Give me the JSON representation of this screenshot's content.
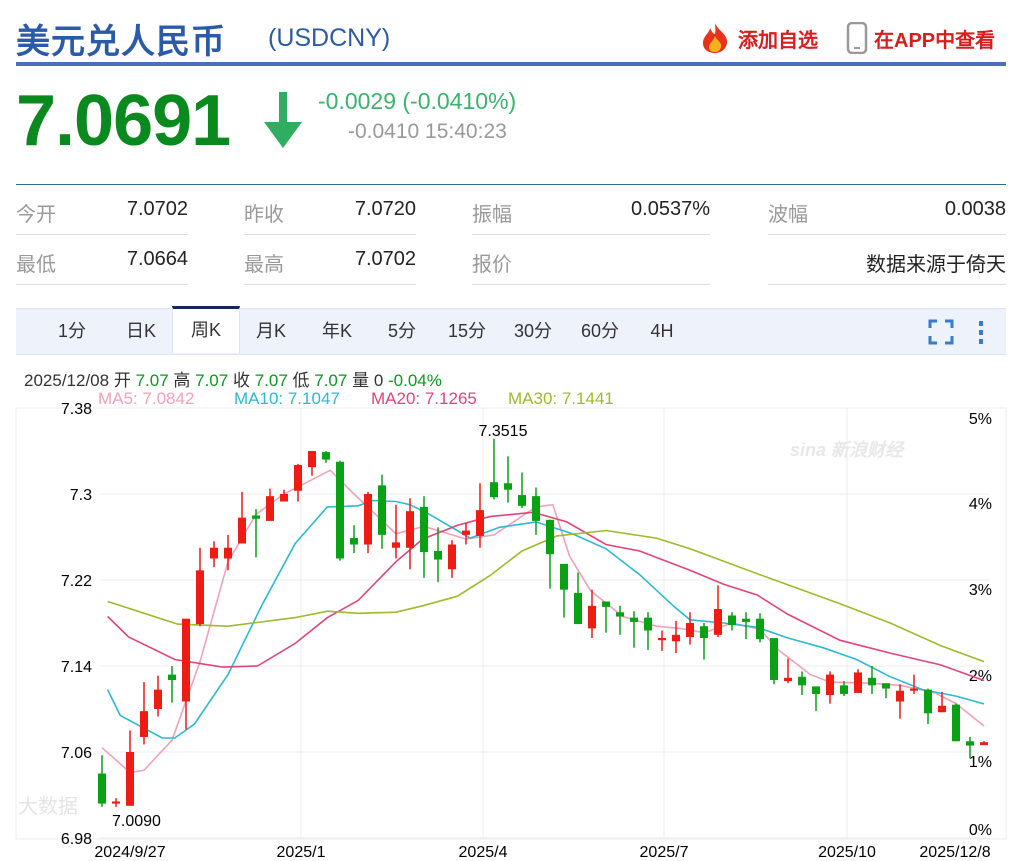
{
  "header": {
    "title": "美元兑人民币",
    "code": "(USDCNY)",
    "add_watchlist": "添加自选",
    "view_in_app": "在APP中查看"
  },
  "quote": {
    "price": "7.0691",
    "direction": "down",
    "change": "-0.0029 (-0.0410%)",
    "sub": "-0.0410 15:40:23",
    "color_down": "#0a8a1e"
  },
  "stats": [
    {
      "label": "今开",
      "value": "7.0702"
    },
    {
      "label": "昨收",
      "value": "7.0720"
    },
    {
      "label": "振幅",
      "value": "0.0537%"
    },
    {
      "label": "波幅",
      "value": "0.0038"
    },
    {
      "label": "最低",
      "value": "7.0664"
    },
    {
      "label": "最高",
      "value": "7.0702"
    },
    {
      "label": "报价",
      "value": ""
    },
    {
      "label": "",
      "value": "数据来源于倚天"
    }
  ],
  "tabs": [
    {
      "label": "1分"
    },
    {
      "label": "日K"
    },
    {
      "label": "周K",
      "active": true
    },
    {
      "label": "月K"
    },
    {
      "label": "年K"
    },
    {
      "label": "5分"
    },
    {
      "label": "15分"
    },
    {
      "label": "30分"
    },
    {
      "label": "60分"
    },
    {
      "label": "4H"
    }
  ],
  "toolbar": {
    "fullscreen_icon": "fullscreen-icon",
    "more_icon": "more-vertical-icon"
  },
  "bar_info": {
    "date": "2025/12/08",
    "open_label": "开",
    "open": "7.07",
    "high_label": "高",
    "high": "7.07",
    "close_label": "收",
    "close": "7.07",
    "low_label": "低",
    "low": "7.07",
    "vol_label": "量",
    "vol": "0",
    "pct": "-0.04%"
  },
  "ma_legend": [
    {
      "label": "MA5: 7.0842",
      "color": "#f4a0b8"
    },
    {
      "label": "MA10: 7.1047",
      "color": "#2bbad2"
    },
    {
      "label": "MA20: 7.1265",
      "color": "#e0457a"
    },
    {
      "label": "MA30: 7.1441",
      "color": "#9cba2a"
    }
  ],
  "watermarks": {
    "top": "sina 新浪财经",
    "bottom": "大数据"
  },
  "chart_data": {
    "type": "candlestick",
    "period": "weekly",
    "up_color": "#ee1c12",
    "down_color": "#09a215",
    "y_ticks": [
      "7.38",
      "7.3",
      "7.22",
      "7.14",
      "7.06",
      "6.98"
    ],
    "ylim": [
      6.98,
      7.38
    ],
    "y2_ticks": [
      "5%",
      "4%",
      "3%",
      "2%",
      "1%",
      "0%"
    ],
    "x_ticks": [
      "2024/9/27",
      "2025/1",
      "2025/4",
      "2025/7",
      "2025/10",
      "2025/12/8"
    ],
    "annotations": {
      "max": "7.3515",
      "min": "7.0090"
    },
    "ohlc": [
      [
        7.04,
        7.057,
        7.009,
        7.012
      ],
      [
        7.012,
        7.017,
        7.009,
        7.014
      ],
      [
        7.01,
        7.08,
        7.01,
        7.06
      ],
      [
        7.074,
        7.125,
        7.067,
        7.098
      ],
      [
        7.1,
        7.131,
        7.093,
        7.118
      ],
      [
        7.132,
        7.14,
        7.106,
        7.127
      ],
      [
        7.107,
        7.184,
        7.081,
        7.184
      ],
      [
        7.179,
        7.25,
        7.177,
        7.229
      ],
      [
        7.24,
        7.256,
        7.232,
        7.25
      ],
      [
        7.24,
        7.262,
        7.229,
        7.25
      ],
      [
        7.254,
        7.302,
        7.254,
        7.278
      ],
      [
        7.28,
        7.286,
        7.241,
        7.277
      ],
      [
        7.275,
        7.305,
        7.275,
        7.298
      ],
      [
        7.293,
        7.304,
        7.293,
        7.3
      ],
      [
        7.303,
        7.328,
        7.293,
        7.327
      ],
      [
        7.325,
        7.34,
        7.317,
        7.34
      ],
      [
        7.339,
        7.34,
        7.329,
        7.332
      ],
      [
        7.33,
        7.331,
        7.238,
        7.24
      ],
      [
        7.259,
        7.271,
        7.245,
        7.253
      ],
      [
        7.253,
        7.302,
        7.245,
        7.3
      ],
      [
        7.308,
        7.318,
        7.249,
        7.262
      ],
      [
        7.25,
        7.29,
        7.24,
        7.255
      ],
      [
        7.25,
        7.296,
        7.23,
        7.284
      ],
      [
        7.288,
        7.298,
        7.222,
        7.246
      ],
      [
        7.247,
        7.269,
        7.218,
        7.239
      ],
      [
        7.23,
        7.257,
        7.222,
        7.253
      ],
      [
        7.262,
        7.273,
        7.253,
        7.266
      ],
      [
        7.261,
        7.31,
        7.25,
        7.285
      ],
      [
        7.311,
        7.3515,
        7.295,
        7.297
      ],
      [
        7.31,
        7.335,
        7.292,
        7.304
      ],
      [
        7.299,
        7.32,
        7.287,
        7.289
      ],
      [
        7.298,
        7.306,
        7.262,
        7.275
      ],
      [
        7.276,
        7.276,
        7.212,
        7.244
      ],
      [
        7.235,
        7.235,
        7.185,
        7.211
      ],
      [
        7.208,
        7.227,
        7.179,
        7.179
      ],
      [
        7.175,
        7.211,
        7.166,
        7.196
      ],
      [
        7.2,
        7.2,
        7.171,
        7.195
      ],
      [
        7.19,
        7.196,
        7.169,
        7.186
      ],
      [
        7.185,
        7.191,
        7.157,
        7.181
      ],
      [
        7.185,
        7.19,
        7.155,
        7.173
      ],
      [
        7.164,
        7.173,
        7.154,
        7.166
      ],
      [
        7.163,
        7.182,
        7.152,
        7.169
      ],
      [
        7.167,
        7.19,
        7.16,
        7.18
      ],
      [
        7.177,
        7.18,
        7.146,
        7.166
      ],
      [
        7.169,
        7.215,
        7.167,
        7.193
      ],
      [
        7.187,
        7.19,
        7.173,
        7.178
      ],
      [
        7.184,
        7.19,
        7.165,
        7.181
      ],
      [
        7.184,
        7.189,
        7.162,
        7.165
      ],
      [
        7.166,
        7.166,
        7.123,
        7.127
      ],
      [
        7.126,
        7.147,
        7.124,
        7.129
      ],
      [
        7.13,
        7.135,
        7.113,
        7.122
      ],
      [
        7.121,
        7.121,
        7.098,
        7.114
      ],
      [
        7.113,
        7.135,
        7.105,
        7.132
      ],
      [
        7.122,
        7.126,
        7.112,
        7.114
      ],
      [
        7.115,
        7.137,
        7.115,
        7.134
      ],
      [
        7.129,
        7.14,
        7.114,
        7.122
      ],
      [
        7.124,
        7.124,
        7.11,
        7.119
      ],
      [
        7.107,
        7.123,
        7.091,
        7.117
      ],
      [
        7.117,
        7.132,
        7.114,
        7.119
      ],
      [
        7.118,
        7.119,
        7.086,
        7.096
      ],
      [
        7.097,
        7.116,
        7.097,
        7.103
      ],
      [
        7.104,
        7.105,
        7.07,
        7.07
      ],
      [
        7.07,
        7.074,
        7.054,
        7.066
      ],
      [
        7.0664,
        7.0702,
        7.0664,
        7.0691
      ]
    ],
    "ma": [
      {
        "name": "MA5",
        "color": "#f4a0b8",
        "points": [
          [
            0,
            7.064
          ],
          [
            2,
            7.041
          ],
          [
            3,
            7.043
          ],
          [
            5,
            7.071
          ],
          [
            7,
            7.144
          ],
          [
            9,
            7.237
          ],
          [
            11,
            7.281
          ],
          [
            13,
            7.3
          ],
          [
            16.3,
            7.322
          ],
          [
            18,
            7.3
          ],
          [
            21,
            7.263
          ],
          [
            23,
            7.27
          ],
          [
            26,
            7.258
          ],
          [
            28,
            7.262
          ],
          [
            31,
            7.288
          ],
          [
            32.2,
            7.29
          ],
          [
            33.4,
            7.242
          ],
          [
            34.9,
            7.21
          ],
          [
            37.2,
            7.186
          ],
          [
            39.6,
            7.177
          ],
          [
            41.3,
            7.175
          ],
          [
            43,
            7.171
          ],
          [
            45,
            7.18
          ],
          [
            47,
            7.174
          ],
          [
            48.4,
            7.154
          ],
          [
            50.6,
            7.132
          ],
          [
            52,
            7.125
          ],
          [
            54.9,
            7.124
          ],
          [
            57,
            7.122
          ],
          [
            59.5,
            7.115
          ],
          [
            61,
            7.105
          ],
          [
            63,
            7.0842
          ]
        ]
      },
      {
        "name": "MA10",
        "color": "#2bbad2",
        "points": [
          [
            0.4,
            7.118
          ],
          [
            1.3,
            7.094
          ],
          [
            4.3,
            7.073
          ],
          [
            5.2,
            7.073
          ],
          [
            6.6,
            7.086
          ],
          [
            9,
            7.132
          ],
          [
            11.4,
            7.196
          ],
          [
            13.8,
            7.254
          ],
          [
            16.1,
            7.288
          ],
          [
            18.3,
            7.289
          ],
          [
            19.3,
            7.294
          ],
          [
            21,
            7.293
          ],
          [
            22,
            7.29
          ],
          [
            23.4,
            7.281
          ],
          [
            26.3,
            7.259
          ],
          [
            28.4,
            7.269
          ],
          [
            31,
            7.274
          ],
          [
            33.6,
            7.263
          ],
          [
            36,
            7.249
          ],
          [
            38.4,
            7.225
          ],
          [
            40.8,
            7.196
          ],
          [
            42,
            7.183
          ],
          [
            44.4,
            7.18
          ],
          [
            46.8,
            7.176
          ],
          [
            49,
            7.166
          ],
          [
            51.5,
            7.157
          ],
          [
            53.9,
            7.146
          ],
          [
            56.3,
            7.13
          ],
          [
            58.6,
            7.118
          ],
          [
            61,
            7.112
          ],
          [
            63,
            7.1047
          ]
        ]
      },
      {
        "name": "MA20",
        "color": "#e0457a",
        "points": [
          [
            0.4,
            7.186
          ],
          [
            1.9,
            7.167
          ],
          [
            5.2,
            7.146
          ],
          [
            8.6,
            7.139
          ],
          [
            11.1,
            7.14
          ],
          [
            13.8,
            7.161
          ],
          [
            16.1,
            7.185
          ],
          [
            18.3,
            7.201
          ],
          [
            21,
            7.237
          ],
          [
            22.9,
            7.258
          ],
          [
            25.4,
            7.271
          ],
          [
            27.7,
            7.279
          ],
          [
            30.8,
            7.283
          ],
          [
            33.2,
            7.274
          ],
          [
            36,
            7.253
          ],
          [
            38.4,
            7.247
          ],
          [
            42,
            7.229
          ],
          [
            44.4,
            7.216
          ],
          [
            46.8,
            7.206
          ],
          [
            49,
            7.188
          ],
          [
            52.7,
            7.164
          ],
          [
            56.3,
            7.152
          ],
          [
            59.9,
            7.141
          ],
          [
            63,
            7.1265
          ]
        ]
      },
      {
        "name": "MA30",
        "color": "#9cba2a",
        "points": [
          [
            0.4,
            7.2
          ],
          [
            5.4,
            7.179
          ],
          [
            9,
            7.177
          ],
          [
            13.8,
            7.185
          ],
          [
            16.1,
            7.191
          ],
          [
            18.3,
            7.189
          ],
          [
            21,
            7.19
          ],
          [
            22.9,
            7.196
          ],
          [
            25.4,
            7.205
          ],
          [
            27.7,
            7.224
          ],
          [
            30,
            7.247
          ],
          [
            32.5,
            7.261
          ],
          [
            36,
            7.266
          ],
          [
            39.6,
            7.259
          ],
          [
            42,
            7.249
          ],
          [
            47.6,
            7.222
          ],
          [
            52.7,
            7.198
          ],
          [
            56.3,
            7.18
          ],
          [
            59.9,
            7.159
          ],
          [
            63,
            7.1441
          ]
        ]
      }
    ]
  }
}
